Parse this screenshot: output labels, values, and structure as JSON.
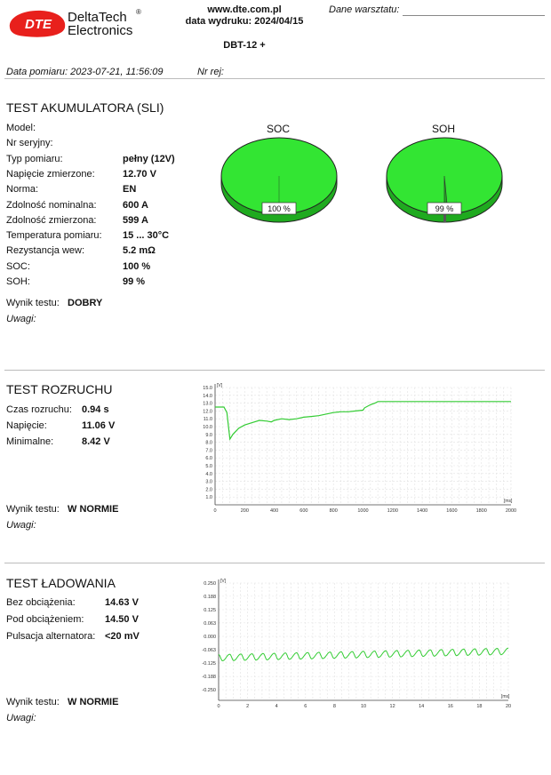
{
  "header": {
    "logo_line1": "DeltaTech",
    "logo_line2": "Electronics",
    "logo_reg": "®",
    "logo_mark": "DTE",
    "website": "www.dte.com.pl",
    "print_date": "data wydruku: 2024/04/15",
    "model": "DBT-12 +",
    "workshop_label": "Dane warsztatu:",
    "measure_date": "Data pomiaru: 2023-07-21, 11:56:09",
    "reg_no": "Nr rej:"
  },
  "battery": {
    "title": "TEST AKUMULATORA (SLI)",
    "rows": [
      {
        "label": "Model:",
        "value": ""
      },
      {
        "label": "Nr seryjny:",
        "value": ""
      },
      {
        "label": "Typ pomiaru:",
        "value": "pełny (12V)"
      },
      {
        "label": "Napięcie zmierzone:",
        "value": "12.70 V"
      },
      {
        "label": "Norma:",
        "value": "EN"
      },
      {
        "label": "Zdolność nominalna:",
        "value": "600 A"
      },
      {
        "label": "Zdolność zmierzona:",
        "value": "599 A"
      },
      {
        "label": "Temperatura pomiaru:",
        "value": "15 ... 30°C"
      },
      {
        "label": "Rezystancja wew:",
        "value": "5.2 mΩ"
      },
      {
        "label": "SOC:",
        "value": "100 %"
      },
      {
        "label": "SOH:",
        "value": "99 %"
      }
    ],
    "result_label": "Wynik testu:",
    "result_value": "DOBRY",
    "notes_label": "Uwagi:",
    "soc": {
      "title": "SOC",
      "label": "100 %",
      "percent": 100
    },
    "soh": {
      "title": "SOH",
      "label": "99 %",
      "percent": 99
    },
    "pie_color": "#33e533"
  },
  "cranking": {
    "title": "TEST ROZRUCHU",
    "rows": [
      {
        "label": "Czas rozruchu:",
        "value": "0.94 s"
      },
      {
        "label": "Napięcie:",
        "value": "11.06 V"
      },
      {
        "label": "Minimalne:",
        "value": "8.42 V"
      }
    ],
    "result_label": "Wynik testu:",
    "result_value": "W NORMIE",
    "notes_label": "Uwagi:"
  },
  "charging": {
    "title": "TEST ŁADOWANIA",
    "rows": [
      {
        "label": "Bez obciążenia:",
        "value": "14.63 V"
      },
      {
        "label": "Pod obciążeniem:",
        "value": "14.50 V"
      },
      {
        "label": "Pulsacja alternatora:",
        "value": "<20 mV"
      }
    ],
    "result_label": "Wynik testu:",
    "result_value": "W NORMIE",
    "notes_label": "Uwagi:"
  },
  "chart_data": [
    {
      "type": "line",
      "y_unit": "[V]",
      "x_unit": "[ms]",
      "xlim": [
        0,
        2000
      ],
      "ylim": [
        0,
        15
      ],
      "x_ticks": [
        "0",
        "200",
        "400",
        "600",
        "800",
        "1000",
        "1200",
        "1400",
        "1600",
        "1800",
        "2000"
      ],
      "y_ticks": [
        "1.0",
        "2.0",
        "3.0",
        "4.0",
        "5.0",
        "6.0",
        "7.0",
        "8.0",
        "9.0",
        "10.0",
        "11.0",
        "12.0",
        "13.0",
        "14.0",
        "15.0"
      ],
      "grid": true,
      "color": "#33cc33",
      "x": [
        0,
        60,
        80,
        100,
        120,
        140,
        160,
        200,
        250,
        300,
        350,
        380,
        400,
        450,
        500,
        550,
        600,
        650,
        700,
        750,
        800,
        850,
        900,
        950,
        1000,
        1010,
        1050,
        1080,
        1100,
        1150,
        1200,
        1400,
        1600,
        1800,
        2000
      ],
      "y": [
        12.5,
        12.5,
        11.8,
        8.4,
        9.0,
        9.4,
        9.8,
        10.2,
        10.5,
        10.8,
        10.7,
        10.6,
        10.8,
        11.0,
        10.9,
        11.0,
        11.2,
        11.3,
        11.4,
        11.6,
        11.8,
        11.9,
        11.9,
        12.0,
        12.1,
        12.4,
        12.8,
        13.0,
        13.2,
        13.2,
        13.2,
        13.2,
        13.2,
        13.2,
        13.2
      ]
    },
    {
      "type": "line",
      "y_unit": "[V]",
      "x_unit": "[ms]",
      "xlim": [
        0,
        20
      ],
      "ylim": [
        -0.3,
        0.25
      ],
      "x_ticks": [
        "0",
        "2",
        "4",
        "6",
        "8",
        "10",
        "12",
        "14",
        "16",
        "18",
        "20"
      ],
      "y_ticks": [
        "0.250",
        "0.188",
        "0.125",
        "0.063",
        "0.000",
        "-0.063",
        "-0.125",
        "-0.188",
        "-0.250"
      ],
      "y_tick_values": [
        0.25,
        0.188,
        0.125,
        0.063,
        0.0,
        -0.063,
        -0.125,
        -0.188,
        -0.25
      ],
      "grid": true,
      "color": "#33cc33",
      "ripple_mean_start": -0.1,
      "ripple_mean_end": -0.07,
      "ripple_amplitude": 0.03,
      "ripple_cycles": 26
    }
  ]
}
